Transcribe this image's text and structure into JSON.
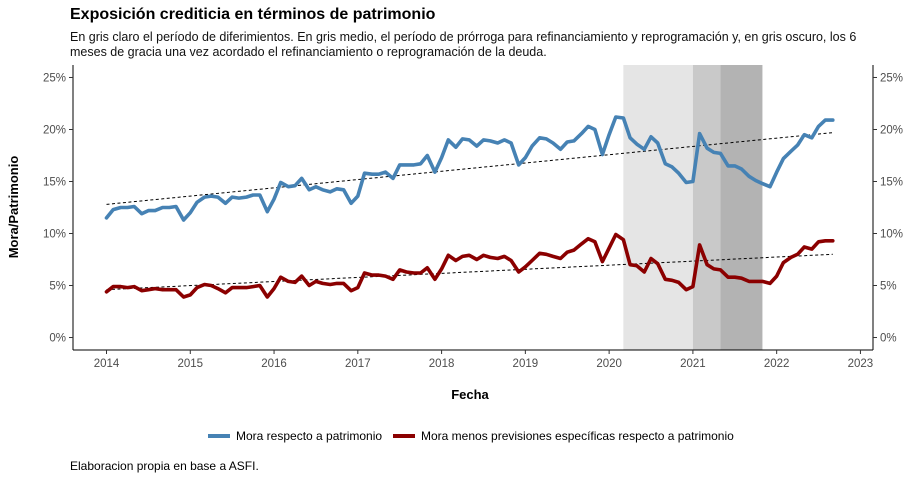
{
  "title": "Exposición crediticia en términos de patrimonio",
  "subtitle": "En gris claro el período de diferimientos. En gris medio, el período de prórroga para refinanciamiento y reprogramación y, en gris oscuro, los 6 meses de gracia una vez acordado el refinanciamiento o reprogramación de la deuda.",
  "caption": "Elaboracion propia en base a ASFI.",
  "colors": {
    "series1": "#4682b4",
    "series2": "#8b0000",
    "band_light": "#e5e5e5",
    "band_medium": "#c9c9c9",
    "band_dark": "#b3b3b3",
    "trend": "#000000"
  },
  "chart_data": {
    "type": "line",
    "xlabel": "Fecha",
    "ylabel": "Mora/Patrimonio",
    "xlim": [
      2013.6,
      2023.15
    ],
    "ylim": [
      -1.2,
      26.2
    ],
    "x_ticks": [
      "2014",
      "2015",
      "2016",
      "2017",
      "2018",
      "2019",
      "2020",
      "2021",
      "2022",
      "2023"
    ],
    "y_ticks": [
      "0%",
      "5%",
      "10%",
      "15%",
      "20%",
      "25%"
    ],
    "y_tick_values": [
      0,
      5,
      10,
      15,
      20,
      25
    ],
    "secondary_y_axis": true,
    "grid": false,
    "legend_position": "bottom",
    "bands": [
      {
        "name": "diferimientos",
        "from": 2020.17,
        "to": 2021.0,
        "shade": "light"
      },
      {
        "name": "prorroga",
        "from": 2021.0,
        "to": 2021.33,
        "shade": "medium"
      },
      {
        "name": "gracia",
        "from": 2021.33,
        "to": 2021.83,
        "shade": "dark"
      }
    ],
    "series": [
      {
        "name": "Mora respecto a patrimonio",
        "color": "#4682b4",
        "trend": {
          "x": [
            2014.0,
            2022.67
          ],
          "y": [
            12.8,
            19.7
          ]
        },
        "points": [
          [
            2014.0,
            11.5
          ],
          [
            2014.08,
            12.3
          ],
          [
            2014.17,
            12.5
          ],
          [
            2014.25,
            12.5
          ],
          [
            2014.33,
            12.6
          ],
          [
            2014.42,
            11.9
          ],
          [
            2014.5,
            12.2
          ],
          [
            2014.58,
            12.2
          ],
          [
            2014.67,
            12.5
          ],
          [
            2014.75,
            12.5
          ],
          [
            2014.83,
            12.6
          ],
          [
            2014.92,
            11.3
          ],
          [
            2015.0,
            12.0
          ],
          [
            2015.08,
            13.0
          ],
          [
            2015.17,
            13.5
          ],
          [
            2015.25,
            13.6
          ],
          [
            2015.33,
            13.5
          ],
          [
            2015.42,
            12.9
          ],
          [
            2015.5,
            13.5
          ],
          [
            2015.58,
            13.4
          ],
          [
            2015.67,
            13.5
          ],
          [
            2015.75,
            13.7
          ],
          [
            2015.83,
            13.7
          ],
          [
            2015.92,
            12.1
          ],
          [
            2016.0,
            13.3
          ],
          [
            2016.08,
            14.9
          ],
          [
            2016.17,
            14.5
          ],
          [
            2016.25,
            14.6
          ],
          [
            2016.33,
            15.3
          ],
          [
            2016.42,
            14.2
          ],
          [
            2016.5,
            14.5
          ],
          [
            2016.58,
            14.2
          ],
          [
            2016.67,
            14.0
          ],
          [
            2016.75,
            14.3
          ],
          [
            2016.83,
            14.2
          ],
          [
            2016.92,
            12.9
          ],
          [
            2017.0,
            13.6
          ],
          [
            2017.08,
            15.8
          ],
          [
            2017.17,
            15.7
          ],
          [
            2017.25,
            15.7
          ],
          [
            2017.33,
            15.9
          ],
          [
            2017.42,
            15.3
          ],
          [
            2017.5,
            16.6
          ],
          [
            2017.58,
            16.6
          ],
          [
            2017.67,
            16.6
          ],
          [
            2017.75,
            16.7
          ],
          [
            2017.83,
            17.5
          ],
          [
            2017.92,
            15.9
          ],
          [
            2018.0,
            17.3
          ],
          [
            2018.08,
            19.0
          ],
          [
            2018.17,
            18.3
          ],
          [
            2018.25,
            19.1
          ],
          [
            2018.33,
            19.0
          ],
          [
            2018.42,
            18.4
          ],
          [
            2018.5,
            19.0
          ],
          [
            2018.58,
            18.9
          ],
          [
            2018.67,
            18.7
          ],
          [
            2018.75,
            19.0
          ],
          [
            2018.83,
            18.7
          ],
          [
            2018.92,
            16.6
          ],
          [
            2019.0,
            17.3
          ],
          [
            2019.08,
            18.4
          ],
          [
            2019.17,
            19.2
          ],
          [
            2019.25,
            19.1
          ],
          [
            2019.33,
            18.7
          ],
          [
            2019.42,
            18.1
          ],
          [
            2019.5,
            18.8
          ],
          [
            2019.58,
            18.9
          ],
          [
            2019.67,
            19.6
          ],
          [
            2019.75,
            20.3
          ],
          [
            2019.83,
            20.0
          ],
          [
            2019.92,
            17.6
          ],
          [
            2020.0,
            19.5
          ],
          [
            2020.08,
            21.2
          ],
          [
            2020.17,
            21.1
          ],
          [
            2020.25,
            19.2
          ],
          [
            2020.33,
            18.6
          ],
          [
            2020.42,
            18.1
          ],
          [
            2020.5,
            19.3
          ],
          [
            2020.58,
            18.7
          ],
          [
            2020.67,
            16.7
          ],
          [
            2020.75,
            16.4
          ],
          [
            2020.83,
            15.8
          ],
          [
            2020.92,
            14.9
          ],
          [
            2021.0,
            15.0
          ],
          [
            2021.08,
            19.6
          ],
          [
            2021.17,
            18.2
          ],
          [
            2021.25,
            17.8
          ],
          [
            2021.33,
            17.7
          ],
          [
            2021.42,
            16.5
          ],
          [
            2021.5,
            16.5
          ],
          [
            2021.58,
            16.2
          ],
          [
            2021.67,
            15.5
          ],
          [
            2021.75,
            15.1
          ],
          [
            2021.83,
            14.8
          ],
          [
            2021.92,
            14.5
          ],
          [
            2022.0,
            15.9
          ],
          [
            2022.08,
            17.2
          ],
          [
            2022.17,
            17.9
          ],
          [
            2022.25,
            18.5
          ],
          [
            2022.33,
            19.5
          ],
          [
            2022.42,
            19.2
          ],
          [
            2022.5,
            20.3
          ],
          [
            2022.58,
            20.9
          ],
          [
            2022.67,
            20.9
          ]
        ]
      },
      {
        "name": "Mora menos previsiones específicas respecto a patrimonio",
        "color": "#8b0000",
        "trend": {
          "x": [
            2014.0,
            2022.67
          ],
          "y": [
            4.6,
            8.0
          ]
        },
        "points": [
          [
            2014.0,
            4.4
          ],
          [
            2014.08,
            4.9
          ],
          [
            2014.17,
            4.9
          ],
          [
            2014.25,
            4.8
          ],
          [
            2014.33,
            4.9
          ],
          [
            2014.42,
            4.5
          ],
          [
            2014.5,
            4.6
          ],
          [
            2014.58,
            4.7
          ],
          [
            2014.67,
            4.6
          ],
          [
            2014.75,
            4.6
          ],
          [
            2014.83,
            4.6
          ],
          [
            2014.92,
            3.9
          ],
          [
            2015.0,
            4.1
          ],
          [
            2015.08,
            4.8
          ],
          [
            2015.17,
            5.1
          ],
          [
            2015.25,
            5.0
          ],
          [
            2015.33,
            4.7
          ],
          [
            2015.42,
            4.3
          ],
          [
            2015.5,
            4.8
          ],
          [
            2015.58,
            4.8
          ],
          [
            2015.67,
            4.8
          ],
          [
            2015.75,
            4.9
          ],
          [
            2015.83,
            5.0
          ],
          [
            2015.92,
            3.9
          ],
          [
            2016.0,
            4.7
          ],
          [
            2016.08,
            5.8
          ],
          [
            2016.17,
            5.4
          ],
          [
            2016.25,
            5.3
          ],
          [
            2016.33,
            5.9
          ],
          [
            2016.42,
            5.0
          ],
          [
            2016.5,
            5.4
          ],
          [
            2016.58,
            5.2
          ],
          [
            2016.67,
            5.1
          ],
          [
            2016.75,
            5.2
          ],
          [
            2016.83,
            5.2
          ],
          [
            2016.92,
            4.5
          ],
          [
            2017.0,
            4.8
          ],
          [
            2017.08,
            6.2
          ],
          [
            2017.17,
            6.0
          ],
          [
            2017.25,
            6.0
          ],
          [
            2017.33,
            5.9
          ],
          [
            2017.42,
            5.6
          ],
          [
            2017.5,
            6.5
          ],
          [
            2017.58,
            6.3
          ],
          [
            2017.67,
            6.2
          ],
          [
            2017.75,
            6.2
          ],
          [
            2017.83,
            6.7
          ],
          [
            2017.92,
            5.6
          ],
          [
            2018.0,
            6.6
          ],
          [
            2018.08,
            7.9
          ],
          [
            2018.17,
            7.4
          ],
          [
            2018.25,
            7.8
          ],
          [
            2018.33,
            7.9
          ],
          [
            2018.42,
            7.5
          ],
          [
            2018.5,
            7.9
          ],
          [
            2018.58,
            7.7
          ],
          [
            2018.67,
            7.6
          ],
          [
            2018.75,
            7.8
          ],
          [
            2018.83,
            7.4
          ],
          [
            2018.92,
            6.3
          ],
          [
            2019.0,
            6.8
          ],
          [
            2019.08,
            7.4
          ],
          [
            2019.17,
            8.1
          ],
          [
            2019.25,
            8.0
          ],
          [
            2019.33,
            7.8
          ],
          [
            2019.42,
            7.6
          ],
          [
            2019.5,
            8.2
          ],
          [
            2019.58,
            8.4
          ],
          [
            2019.67,
            9.0
          ],
          [
            2019.75,
            9.5
          ],
          [
            2019.83,
            9.2
          ],
          [
            2019.92,
            7.3
          ],
          [
            2020.0,
            8.6
          ],
          [
            2020.08,
            9.9
          ],
          [
            2020.17,
            9.4
          ],
          [
            2020.25,
            7.0
          ],
          [
            2020.33,
            6.9
          ],
          [
            2020.42,
            6.3
          ],
          [
            2020.5,
            7.6
          ],
          [
            2020.58,
            7.1
          ],
          [
            2020.67,
            5.6
          ],
          [
            2020.75,
            5.5
          ],
          [
            2020.83,
            5.3
          ],
          [
            2020.92,
            4.6
          ],
          [
            2021.0,
            4.9
          ],
          [
            2021.08,
            8.9
          ],
          [
            2021.17,
            7.0
          ],
          [
            2021.25,
            6.6
          ],
          [
            2021.33,
            6.5
          ],
          [
            2021.42,
            5.8
          ],
          [
            2021.5,
            5.8
          ],
          [
            2021.58,
            5.7
          ],
          [
            2021.67,
            5.4
          ],
          [
            2021.75,
            5.4
          ],
          [
            2021.83,
            5.4
          ],
          [
            2021.92,
            5.2
          ],
          [
            2022.0,
            5.9
          ],
          [
            2022.08,
            7.2
          ],
          [
            2022.17,
            7.7
          ],
          [
            2022.25,
            8.0
          ],
          [
            2022.33,
            8.7
          ],
          [
            2022.42,
            8.5
          ],
          [
            2022.5,
            9.2
          ],
          [
            2022.58,
            9.3
          ],
          [
            2022.67,
            9.3
          ]
        ]
      }
    ]
  }
}
